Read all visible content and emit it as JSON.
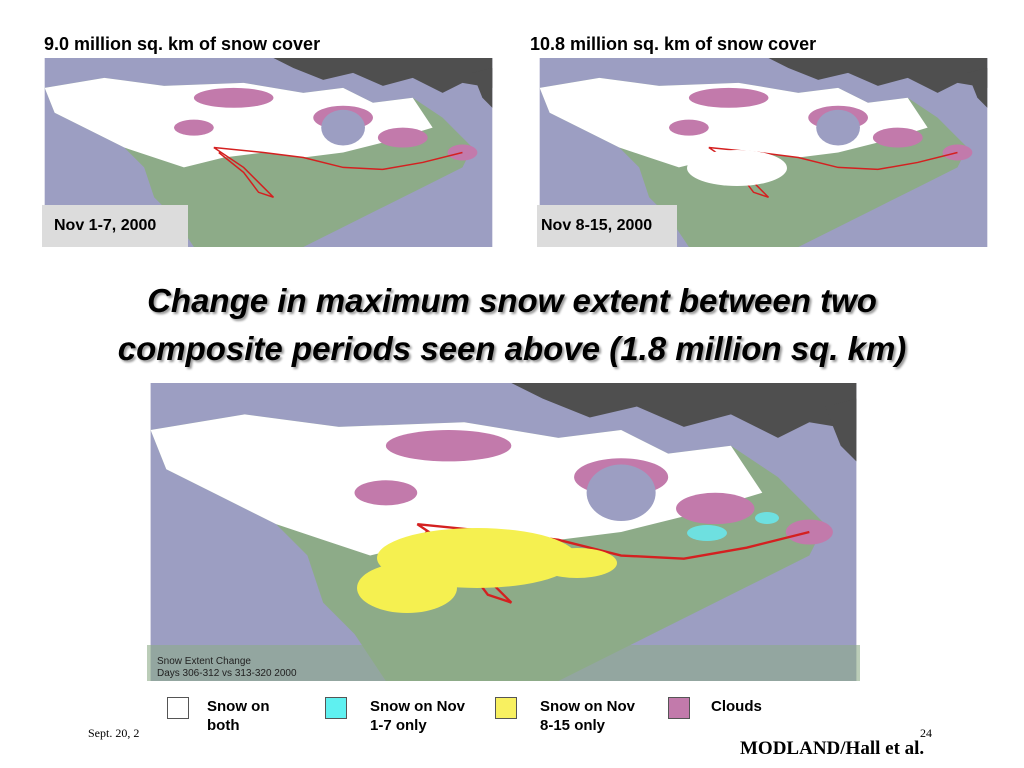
{
  "maps": {
    "left": {
      "heading": "9.0 million sq. km of snow cover",
      "date": "Nov 1-7, 2000"
    },
    "right": {
      "heading": "10.8 million sq. km of snow cover",
      "date": "Nov 8-15, 2000"
    },
    "change": {
      "caption_lines": [
        "Snow Extent Change",
        "Days 306-312 vs 313-320 2000"
      ]
    }
  },
  "title_lines": [
    "Change in maximum snow extent between two",
    "composite periods seen above (1.8 million sq. km)"
  ],
  "legend": [
    {
      "lines": [
        "Snow on",
        "both"
      ]
    },
    {
      "lines": [
        "Snow on Nov",
        "1-7 only"
      ]
    },
    {
      "lines": [
        "Snow on Nov",
        "8-15 only"
      ]
    },
    {
      "lines": [
        "Clouds"
      ]
    }
  ],
  "footer": {
    "date": "Sept. 20, 2",
    "page": "24",
    "credit": "MODLAND/Hall et al."
  }
}
